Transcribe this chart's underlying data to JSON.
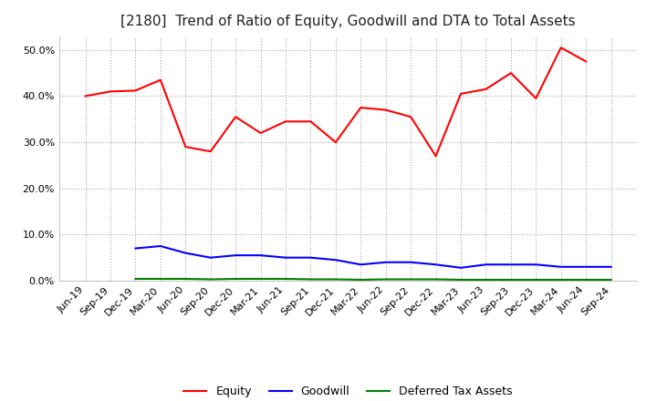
{
  "title": "[2180]  Trend of Ratio of Equity, Goodwill and DTA to Total Assets",
  "x_labels": [
    "Jun-19",
    "Sep-19",
    "Dec-19",
    "Mar-20",
    "Jun-20",
    "Sep-20",
    "Dec-20",
    "Mar-21",
    "Jun-21",
    "Sep-21",
    "Dec-21",
    "Mar-22",
    "Jun-22",
    "Sep-22",
    "Dec-22",
    "Mar-23",
    "Jun-23",
    "Sep-23",
    "Dec-23",
    "Mar-24",
    "Jun-24",
    "Sep-24"
  ],
  "equity": [
    40.0,
    41.0,
    41.2,
    43.5,
    29.0,
    28.0,
    35.5,
    32.0,
    34.5,
    34.5,
    30.0,
    37.5,
    37.0,
    35.5,
    27.0,
    40.5,
    41.5,
    45.0,
    39.5,
    50.5,
    47.5,
    null
  ],
  "goodwill": [
    null,
    null,
    7.0,
    7.5,
    6.0,
    5.0,
    5.5,
    5.5,
    5.0,
    5.0,
    4.5,
    3.5,
    4.0,
    4.0,
    3.5,
    2.8,
    3.5,
    3.5,
    3.5,
    3.0,
    3.0,
    3.0
  ],
  "dta": [
    null,
    null,
    0.4,
    0.4,
    0.4,
    0.3,
    0.4,
    0.4,
    0.4,
    0.3,
    0.3,
    0.2,
    0.3,
    0.3,
    0.3,
    0.2,
    0.2,
    0.2,
    0.2,
    0.2,
    0.2,
    0.2
  ],
  "equity_color": "#ff0000",
  "goodwill_color": "#0000ff",
  "dta_color": "#008000",
  "ylim": [
    0.0,
    53.0
  ],
  "yticks": [
    0.0,
    10.0,
    20.0,
    30.0,
    40.0,
    50.0
  ],
  "background_color": "#ffffff",
  "grid_color": "#aaaaaa",
  "title_fontsize": 11,
  "legend_labels": [
    "Equity",
    "Goodwill",
    "Deferred Tax Assets"
  ]
}
